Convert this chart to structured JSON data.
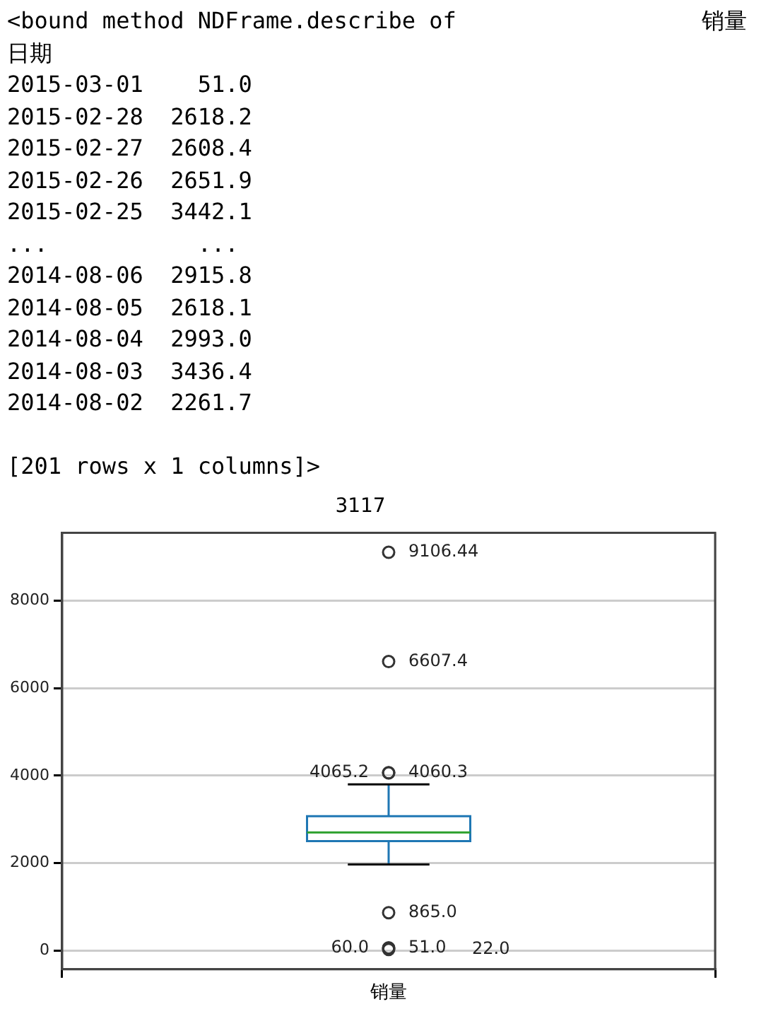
{
  "chart_data": {
    "type": "box",
    "title": "3117",
    "categories": [
      "销量"
    ],
    "boxes": [
      {
        "low": 1970,
        "q1": 2500,
        "median": 2700,
        "q3": 3070,
        "high": 3800,
        "outliers": [
          9106.44,
          6607.4,
          4060.3,
          4065.2,
          865.0,
          51.0,
          60.0,
          22.0
        ]
      }
    ],
    "ylim": [
      -430,
      9550
    ],
    "yticks": [
      0,
      2000,
      4000,
      6000,
      8000
    ],
    "grid": true,
    "annotations": [
      "<bound method NDFrame.describe of                  销量",
      "日期",
      "2015-03-01    51.0",
      "2015-02-28  2618.2",
      "2015-02-27  2608.4",
      "2015-02-26  2651.9",
      "2015-02-25  3442.1",
      "...           ...",
      "2014-08-06  2915.8",
      "2014-08-05  2618.1",
      "2014-08-04  2993.0",
      "2014-08-03  3436.4",
      "2014-08-02  2261.7",
      "[201 rows x 1 columns]>",
      "9106.44",
      "6607.4",
      "4060.3",
      "4065.2",
      "865.0",
      "51.0",
      "60.0",
      "22.0"
    ]
  }
}
